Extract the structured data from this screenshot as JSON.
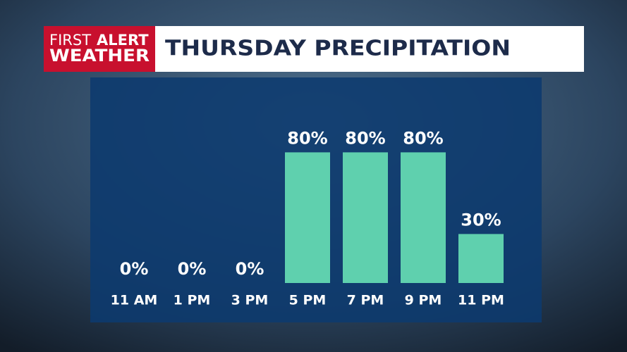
{
  "brand": {
    "first": "FIRST",
    "alert": "ALERT",
    "weather": "WEATHER"
  },
  "chart_data": {
    "type": "bar",
    "title": "THURSDAY PRECIPITATION",
    "categories": [
      "11 AM",
      "1 PM",
      "3 PM",
      "5 PM",
      "7 PM",
      "9 PM",
      "11 PM"
    ],
    "values": [
      0,
      0,
      0,
      80,
      80,
      80,
      30
    ],
    "value_labels": [
      "0%",
      "0%",
      "0%",
      "80%",
      "80%",
      "80%",
      "30%"
    ],
    "color": "#5fd0ae"
  }
}
